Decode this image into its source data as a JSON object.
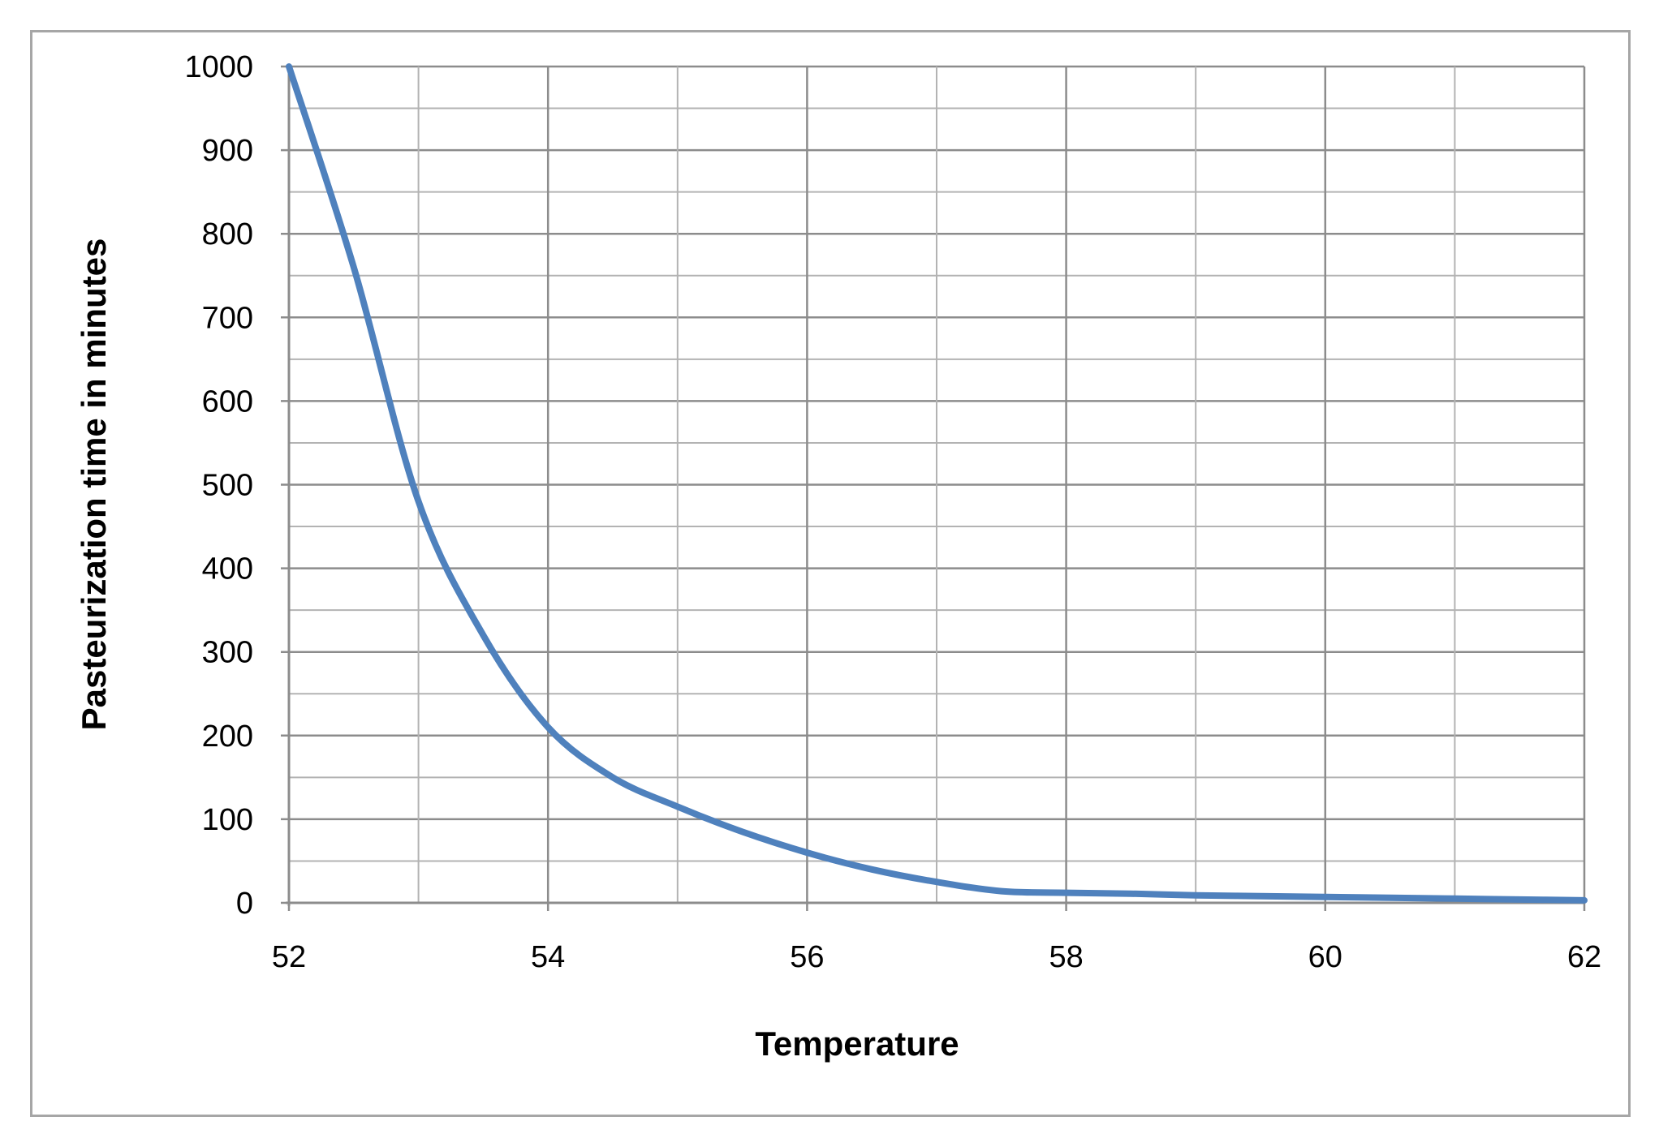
{
  "chart_data": {
    "type": "line",
    "title": "",
    "xlabel": "Temperature",
    "ylabel": "Pasteurization time in minutes",
    "xlim": [
      52,
      62
    ],
    "ylim": [
      0,
      1000
    ],
    "x_ticks": [
      52,
      54,
      56,
      58,
      60,
      62
    ],
    "y_ticks": [
      0,
      100,
      200,
      300,
      400,
      500,
      600,
      700,
      800,
      900,
      1000
    ],
    "grid": true,
    "legend": "none",
    "series": [
      {
        "color": "#4f81bd",
        "x": [
          52,
          52.5,
          53,
          53.5,
          54,
          54.5,
          55,
          55.5,
          56,
          56.5,
          57,
          57.5,
          58,
          58.5,
          59,
          59.5,
          60,
          60.5,
          61,
          61.5,
          62
        ],
        "y": [
          1000,
          760,
          480,
          320,
          210,
          150,
          115,
          85,
          60,
          40,
          25,
          14,
          12,
          11,
          9,
          8,
          7,
          6,
          5,
          4,
          3
        ]
      }
    ]
  }
}
